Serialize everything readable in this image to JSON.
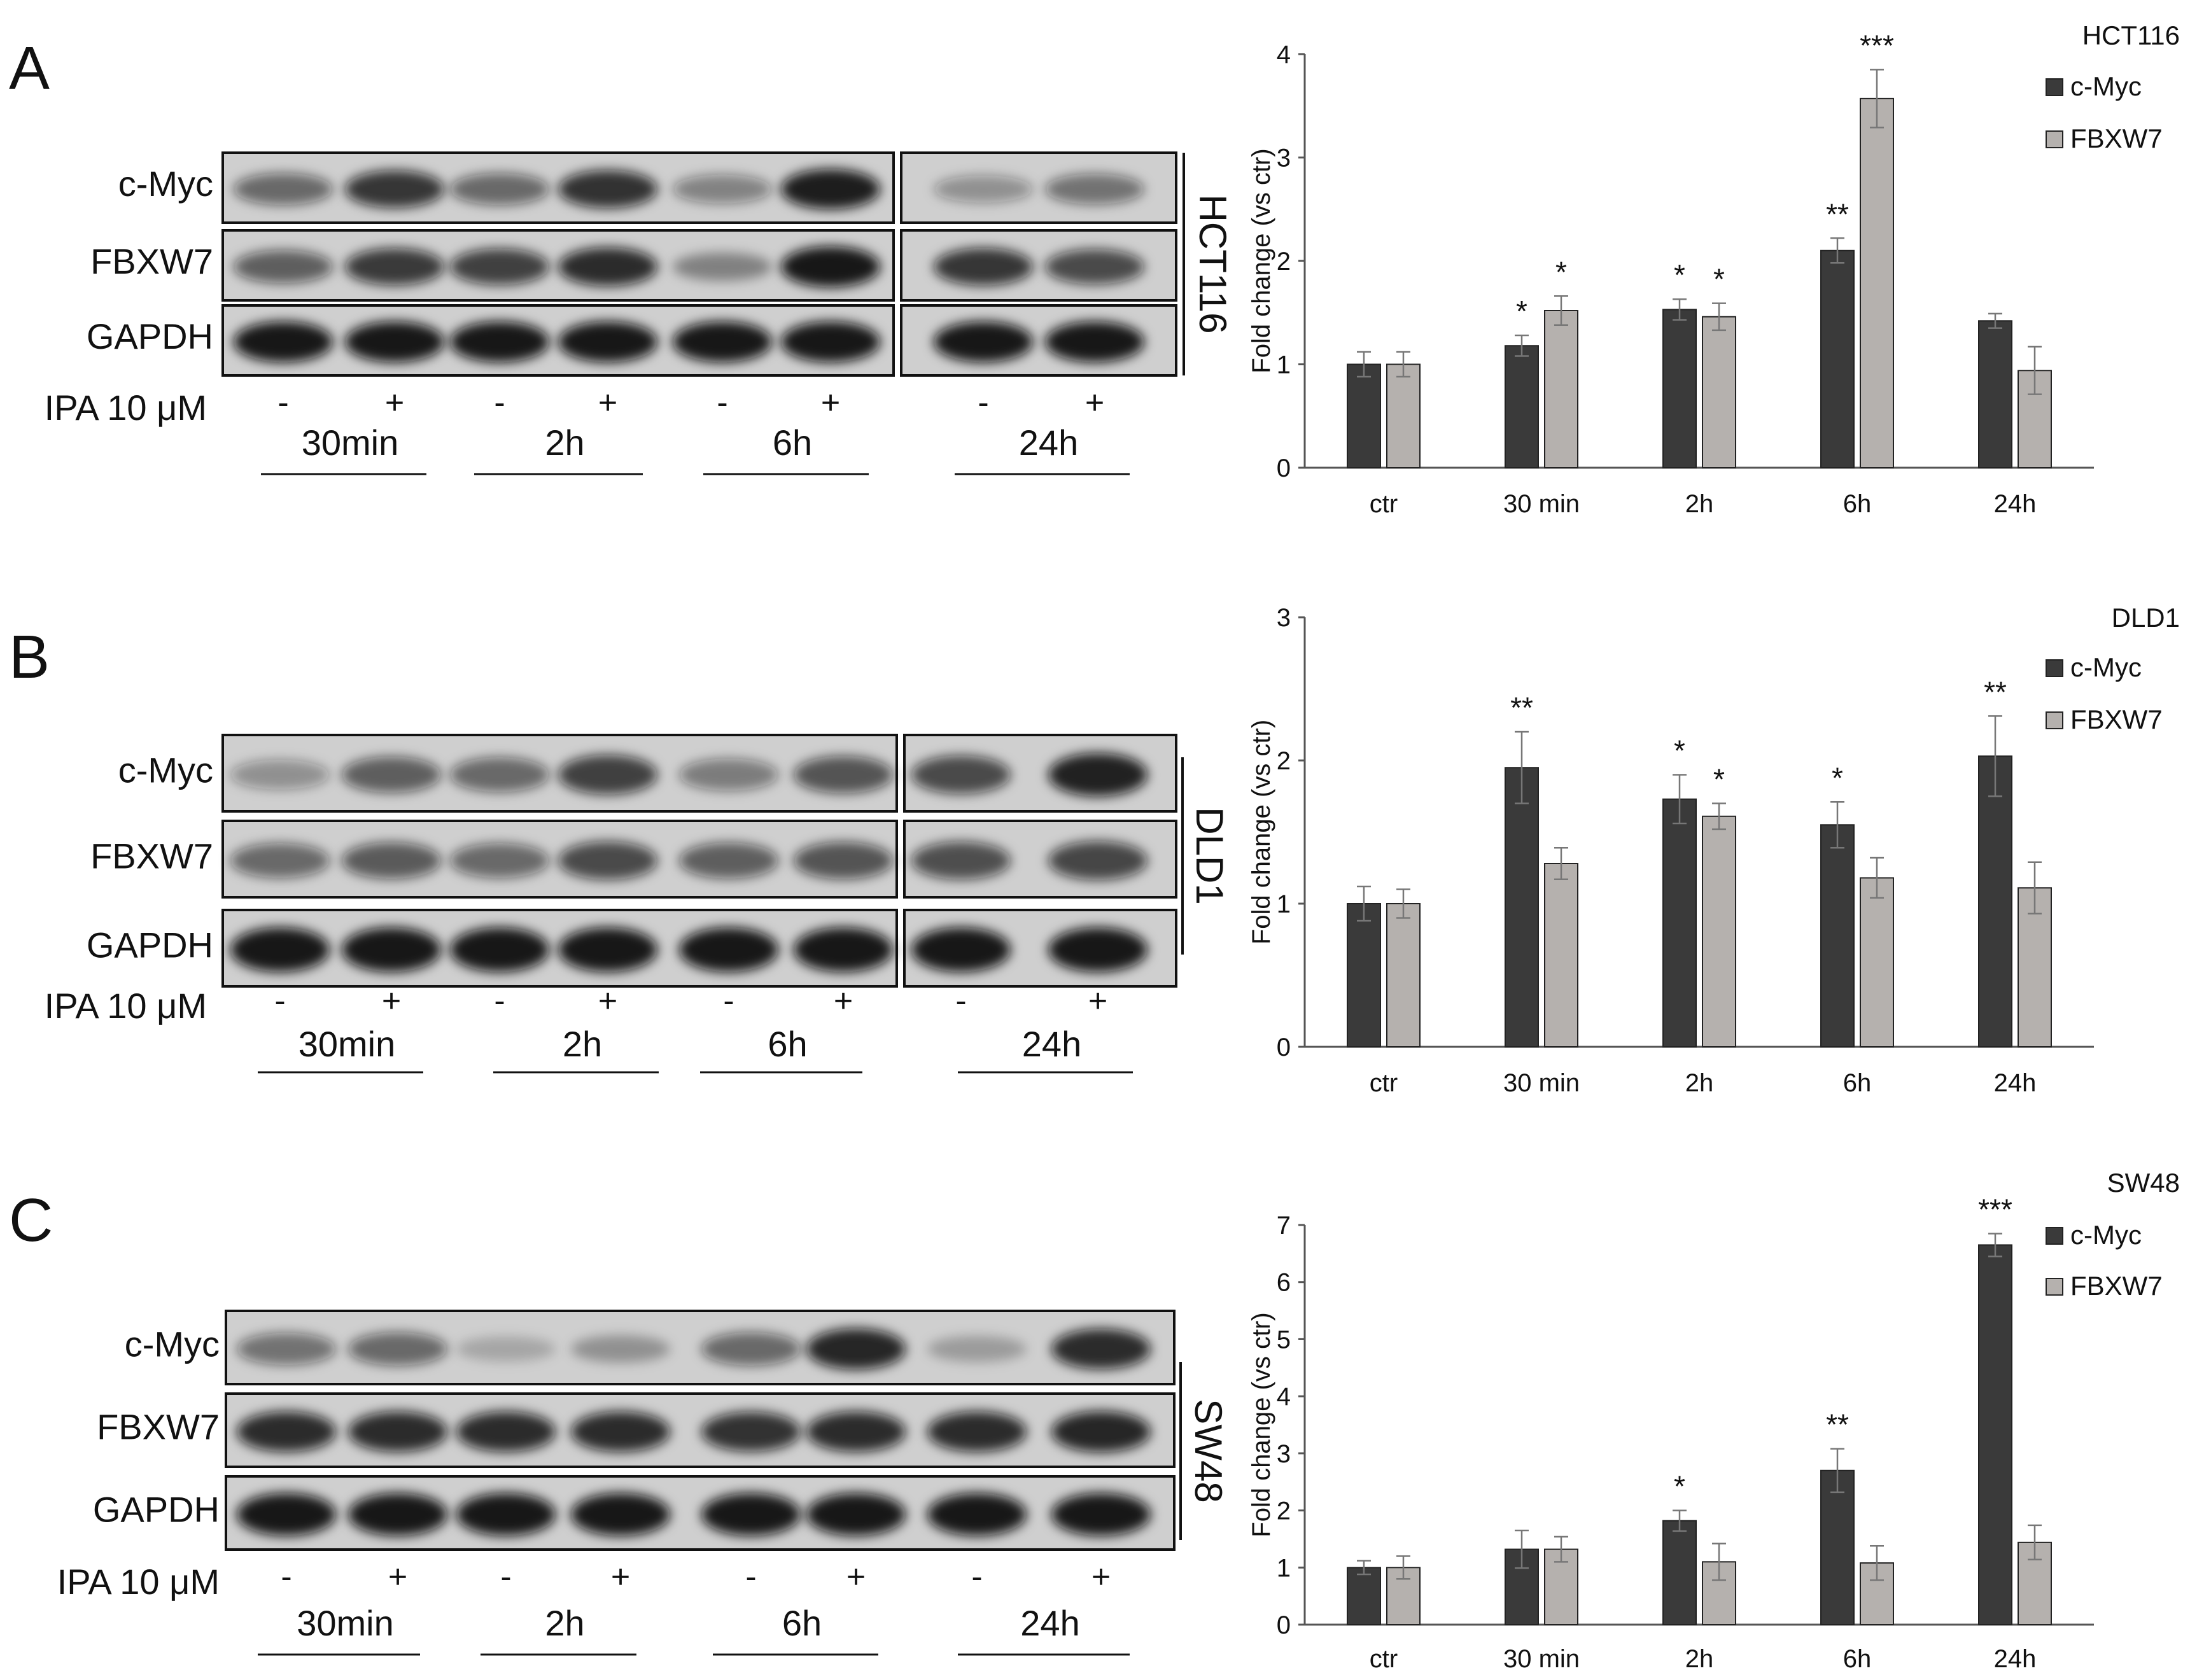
{
  "panels": [
    {
      "letter": "A",
      "cell_line": "HCT116",
      "blot": {
        "rows": [
          "c-Myc",
          "FBXW7",
          "GAPDH"
        ],
        "treatment_label": "IPA 10 μM",
        "lane_signs": [
          "-",
          "+",
          "-",
          "+",
          "-",
          "+",
          "-",
          "+"
        ],
        "time_labels": [
          "30min",
          "2h",
          "6h",
          "24h"
        ],
        "band_intensity": [
          [
            0.55,
            0.8,
            0.55,
            0.82,
            0.42,
            0.92,
            0.35,
            0.5
          ],
          [
            0.6,
            0.78,
            0.75,
            0.85,
            0.38,
            0.95,
            0.8,
            0.7
          ],
          [
            0.95,
            0.95,
            0.95,
            0.95,
            0.95,
            0.95,
            0.95,
            0.95
          ]
        ]
      }
    },
    {
      "letter": "B",
      "cell_line": "DLD1",
      "blot": {
        "rows": [
          "c-Myc",
          "FBXW7",
          "GAPDH"
        ],
        "treatment_label": "IPA 10 μM",
        "lane_signs": [
          "-",
          "+",
          "-",
          "+",
          "-",
          "+",
          "-",
          "+"
        ],
        "time_labels": [
          "30min",
          "2h",
          "6h",
          "24h"
        ],
        "band_intensity": [
          [
            0.35,
            0.6,
            0.55,
            0.75,
            0.45,
            0.65,
            0.7,
            0.9
          ],
          [
            0.55,
            0.62,
            0.55,
            0.7,
            0.6,
            0.65,
            0.68,
            0.72
          ],
          [
            0.95,
            0.95,
            0.95,
            0.95,
            0.95,
            0.95,
            0.95,
            0.95
          ]
        ]
      }
    },
    {
      "letter": "C",
      "cell_line": "SW48",
      "blot": {
        "rows": [
          "c-Myc",
          "FBXW7",
          "GAPDH"
        ],
        "treatment_label": "IPA 10 μM",
        "lane_signs": [
          "-",
          "+",
          "-",
          "+",
          "-",
          "+",
          "-",
          "+"
        ],
        "time_labels": [
          "30min",
          "2h",
          "6h",
          "24h"
        ],
        "band_intensity": [
          [
            0.5,
            0.55,
            0.2,
            0.3,
            0.55,
            0.88,
            0.25,
            0.85
          ],
          [
            0.85,
            0.85,
            0.85,
            0.85,
            0.82,
            0.85,
            0.85,
            0.88
          ],
          [
            0.95,
            0.95,
            0.95,
            0.95,
            0.95,
            0.95,
            0.95,
            0.95
          ]
        ]
      }
    }
  ],
  "chart_data": [
    {
      "type": "bar",
      "title": "HCT116",
      "ylabel": "Fold change (vs ctr)",
      "categories": [
        "ctr",
        "30 min",
        "2h",
        "6h",
        "24h"
      ],
      "ylim": [
        0,
        4
      ],
      "yticks": [
        0,
        1,
        2,
        3,
        4
      ],
      "legend_position": "top-right",
      "series": [
        {
          "name": "c-Myc",
          "color": "#3a3a3a",
          "values": [
            1.0,
            1.18,
            1.53,
            2.1,
            1.42
          ],
          "errors": [
            0.12,
            0.1,
            0.1,
            0.12,
            0.07
          ]
        },
        {
          "name": "FBXW7",
          "color": "#b5b1ae",
          "values": [
            1.0,
            1.52,
            1.46,
            3.57,
            0.94
          ],
          "errors": [
            0.12,
            0.14,
            0.13,
            0.28,
            0.23
          ]
        }
      ],
      "annotations": [
        [
          "",
          "*",
          "*",
          "**",
          ""
        ],
        [
          "",
          "*",
          "*",
          "***",
          ""
        ]
      ]
    },
    {
      "type": "bar",
      "title": "DLD1",
      "ylabel": "Fold change (vs ctr)",
      "categories": [
        "ctr",
        "30 min",
        "2h",
        "6h",
        "24h"
      ],
      "ylim": [
        0,
        3
      ],
      "yticks": [
        0,
        1,
        2,
        3
      ],
      "legend_position": "top-right",
      "series": [
        {
          "name": "c-Myc",
          "color": "#3a3a3a",
          "values": [
            1.0,
            1.95,
            1.73,
            1.55,
            2.03
          ],
          "errors": [
            0.12,
            0.25,
            0.17,
            0.16,
            0.28
          ]
        },
        {
          "name": "FBXW7",
          "color": "#b5b1ae",
          "values": [
            1.0,
            1.28,
            1.61,
            1.18,
            1.11
          ],
          "errors": [
            0.1,
            0.11,
            0.09,
            0.14,
            0.18
          ]
        }
      ],
      "annotations": [
        [
          "",
          "**",
          "*",
          "*",
          "**"
        ],
        [
          "",
          "",
          "*",
          "",
          ""
        ]
      ]
    },
    {
      "type": "bar",
      "title": "SW48",
      "ylabel": "Fold change (vs ctr)",
      "categories": [
        "ctr",
        "30 min",
        "2h",
        "6h",
        "24h"
      ],
      "ylim": [
        0,
        7
      ],
      "yticks": [
        0,
        1,
        2,
        3,
        4,
        5,
        6,
        7
      ],
      "legend_position": "top-right",
      "series": [
        {
          "name": "c-Myc",
          "color": "#3a3a3a",
          "values": [
            1.0,
            1.32,
            1.82,
            2.7,
            6.65
          ],
          "errors": [
            0.12,
            0.33,
            0.18,
            0.38,
            0.2
          ]
        },
        {
          "name": "FBXW7",
          "color": "#b5b1ae",
          "values": [
            1.0,
            1.32,
            1.1,
            1.08,
            1.44
          ],
          "errors": [
            0.2,
            0.22,
            0.32,
            0.3,
            0.3
          ]
        }
      ],
      "annotations": [
        [
          "",
          "",
          "*",
          "**",
          "***"
        ],
        [
          "",
          "",
          "",
          "",
          ""
        ]
      ]
    }
  ]
}
